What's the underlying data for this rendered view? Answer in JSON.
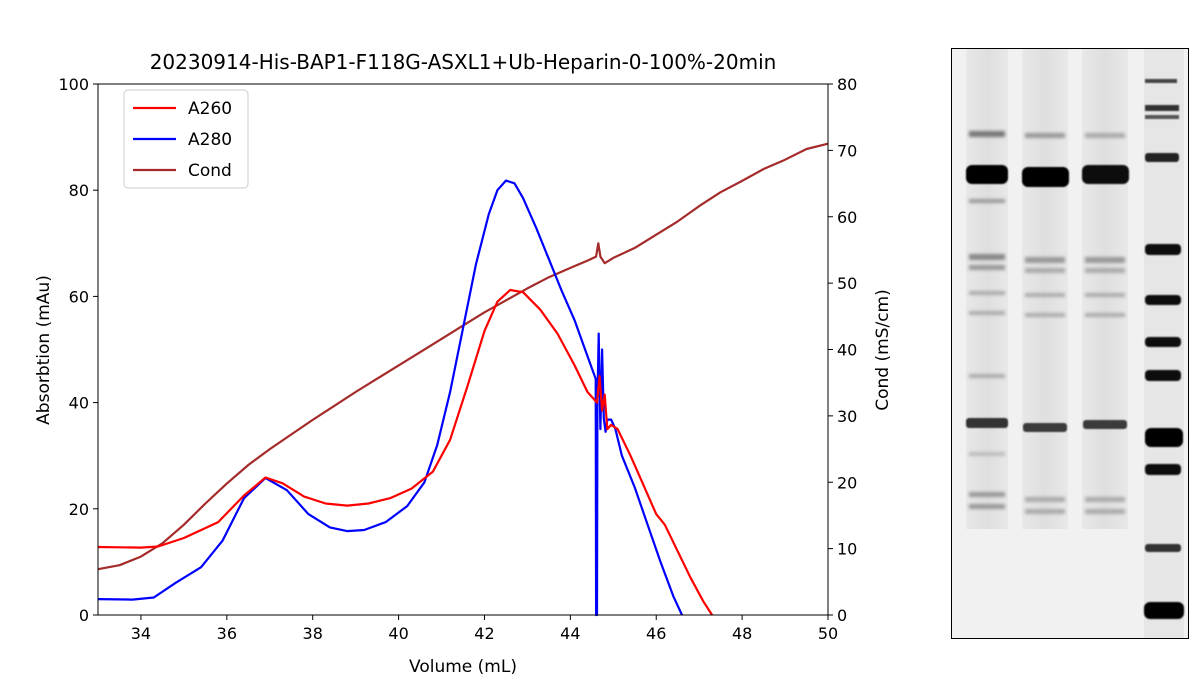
{
  "chart_data": {
    "type": "line",
    "title": "20230914-His-BAP1-F118G-ASXL1+Ub-Heparin-0-100%-20min",
    "xlabel": "Volume (mL)",
    "ylabel": "Absorbtion (mAu)",
    "y2label": "Cond (mS/cm)",
    "xlim": [
      33,
      50
    ],
    "ylim": [
      0,
      100
    ],
    "y2lim": [
      0,
      80
    ],
    "xticks": [
      "34",
      "36",
      "38",
      "40",
      "42",
      "44",
      "46",
      "48",
      "50"
    ],
    "yticks": [
      "0",
      "20",
      "40",
      "60",
      "80",
      "100"
    ],
    "y2ticks": [
      "0",
      "10",
      "20",
      "30",
      "40",
      "50",
      "60",
      "70",
      "80"
    ],
    "grid": false,
    "legend_position": "top-left",
    "series": [
      {
        "name": "A260",
        "axis": "left",
        "color": "#ff0000",
        "x": [
          33.0,
          34.0,
          34.4,
          35.0,
          35.8,
          36.4,
          36.9,
          37.3,
          37.8,
          38.3,
          38.8,
          39.3,
          39.8,
          40.3,
          40.8,
          41.2,
          41.6,
          42.0,
          42.3,
          42.6,
          42.9,
          43.3,
          43.7,
          44.1,
          44.4,
          44.62,
          44.68,
          44.74,
          44.8,
          44.86,
          44.95,
          45.1,
          45.4,
          45.7,
          46.0,
          46.2,
          46.5,
          46.8,
          47.1,
          47.3
        ],
        "y": [
          12.8,
          12.7,
          12.9,
          14.5,
          17.5,
          22.5,
          25.9,
          24.8,
          22.3,
          21.0,
          20.6,
          21.0,
          22.0,
          23.8,
          27.0,
          33.0,
          43.0,
          53.5,
          59.0,
          61.2,
          60.8,
          57.5,
          53.0,
          47.0,
          42.0,
          40.0,
          45.0,
          38.5,
          41.5,
          35.0,
          35.8,
          35.0,
          30.0,
          24.5,
          19.0,
          17.0,
          12.0,
          7.0,
          2.5,
          0.0
        ]
      },
      {
        "name": "A280",
        "axis": "left",
        "color": "#0000ff",
        "x": [
          33.0,
          33.8,
          34.3,
          34.8,
          35.4,
          35.9,
          36.4,
          36.9,
          37.4,
          37.9,
          38.4,
          38.8,
          39.2,
          39.7,
          40.2,
          40.6,
          40.9,
          41.2,
          41.5,
          41.8,
          42.1,
          42.3,
          42.5,
          42.7,
          42.9,
          43.2,
          43.5,
          43.8,
          44.1,
          44.3,
          44.5,
          44.59,
          44.6,
          44.62,
          44.63,
          44.66,
          44.7,
          44.74,
          44.78,
          44.82,
          44.86,
          44.95,
          45.05,
          45.2,
          45.5,
          45.8,
          46.1,
          46.4,
          46.6
        ],
        "y": [
          3.0,
          2.9,
          3.3,
          6.0,
          9.0,
          14.0,
          22.0,
          25.8,
          23.5,
          19.0,
          16.5,
          15.8,
          16.0,
          17.5,
          20.5,
          25.0,
          32.0,
          42.0,
          54.0,
          66.0,
          75.5,
          80.0,
          81.8,
          81.3,
          78.5,
          73.0,
          67.0,
          61.0,
          55.5,
          51.0,
          46.5,
          44.5,
          0.0,
          0.0,
          40.0,
          53.0,
          35.0,
          50.0,
          37.0,
          34.5,
          36.8,
          36.8,
          35.0,
          30.0,
          24.0,
          17.0,
          10.0,
          3.5,
          0.0
        ]
      },
      {
        "name": "Cond",
        "axis": "right",
        "color": "#a52a2a",
        "x": [
          33.0,
          33.5,
          34.0,
          34.5,
          35.0,
          35.5,
          36.0,
          36.5,
          37.0,
          37.5,
          38.0,
          38.5,
          39.0,
          39.5,
          40.0,
          40.5,
          41.0,
          41.5,
          42.0,
          42.5,
          43.0,
          43.5,
          44.0,
          44.4,
          44.6,
          44.65,
          44.7,
          44.8,
          45.0,
          45.5,
          46.0,
          46.5,
          47.0,
          47.5,
          48.0,
          48.5,
          49.0,
          49.5,
          50.0
        ],
        "y": [
          6.9,
          7.5,
          8.8,
          10.8,
          13.6,
          16.8,
          19.8,
          22.6,
          25.0,
          27.2,
          29.4,
          31.5,
          33.6,
          35.6,
          37.6,
          39.6,
          41.6,
          43.6,
          45.6,
          47.4,
          49.2,
          50.9,
          52.3,
          53.4,
          54.0,
          56.0,
          54.0,
          53.0,
          53.8,
          55.3,
          57.3,
          59.3,
          61.6,
          63.7,
          65.4,
          67.2,
          68.6,
          70.2,
          71.0
        ]
      }
    ]
  }
}
